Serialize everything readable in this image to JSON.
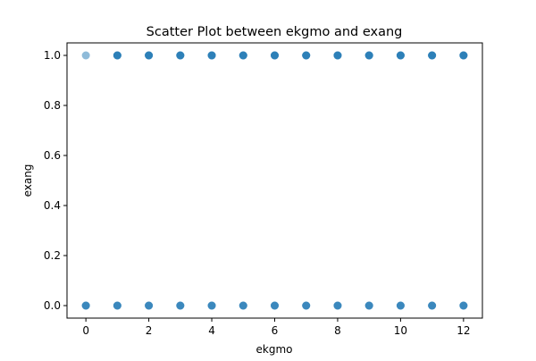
{
  "chart_data": {
    "type": "scatter",
    "title": "Scatter Plot between ekgmo and exang",
    "xlabel": "ekgmo",
    "ylabel": "exang",
    "xlim": [
      -0.6,
      12.6
    ],
    "ylim": [
      -0.05,
      1.05
    ],
    "x_ticks": [
      0,
      2,
      4,
      6,
      8,
      10,
      12
    ],
    "x_tick_labels": [
      "0",
      "2",
      "4",
      "6",
      "8",
      "10",
      "12"
    ],
    "y_ticks": [
      0.0,
      0.2,
      0.4,
      0.6,
      0.8,
      1.0
    ],
    "y_tick_labels": [
      "0.0",
      "0.2",
      "0.4",
      "0.6",
      "0.8",
      "1.0"
    ],
    "grid": false,
    "legend": "none",
    "marker_color": "#1f77b4",
    "marker_alpha": 0.5,
    "series": [
      {
        "x": [
          0,
          1,
          2,
          3,
          4,
          5,
          6,
          7,
          8,
          9,
          10,
          11,
          12,
          0,
          0,
          0,
          1,
          1,
          1,
          2,
          2,
          2,
          3,
          3,
          3,
          4,
          4,
          4,
          5,
          5,
          5,
          6,
          6,
          6,
          7,
          7,
          7,
          8,
          8,
          8,
          9,
          9,
          9,
          10,
          10,
          10,
          11,
          11,
          11,
          12,
          12,
          12,
          1,
          1,
          1,
          2,
          2,
          2,
          3,
          3,
          3,
          4,
          4,
          4,
          5,
          5,
          5,
          6,
          6,
          6,
          7,
          7,
          7,
          8,
          8,
          8,
          9,
          9,
          9,
          10,
          10,
          10,
          11,
          11,
          11,
          12,
          12,
          12
        ],
        "y": [
          1,
          1,
          1,
          1,
          1,
          1,
          1,
          1,
          1,
          1,
          1,
          1,
          1,
          0,
          0,
          0,
          0,
          0,
          0,
          0,
          0,
          0,
          0,
          0,
          0,
          0,
          0,
          0,
          0,
          0,
          0,
          0,
          0,
          0,
          0,
          0,
          0,
          0,
          0,
          0,
          0,
          0,
          0,
          0,
          0,
          0,
          0,
          0,
          0,
          0,
          0,
          0,
          1,
          1,
          1,
          1,
          1,
          1,
          1,
          1,
          1,
          1,
          1,
          1,
          1,
          1,
          1,
          1,
          1,
          1,
          1,
          1,
          1,
          1,
          1,
          1,
          1,
          1,
          1,
          1,
          1,
          1,
          1,
          1,
          1,
          1,
          1,
          1
        ]
      }
    ]
  }
}
